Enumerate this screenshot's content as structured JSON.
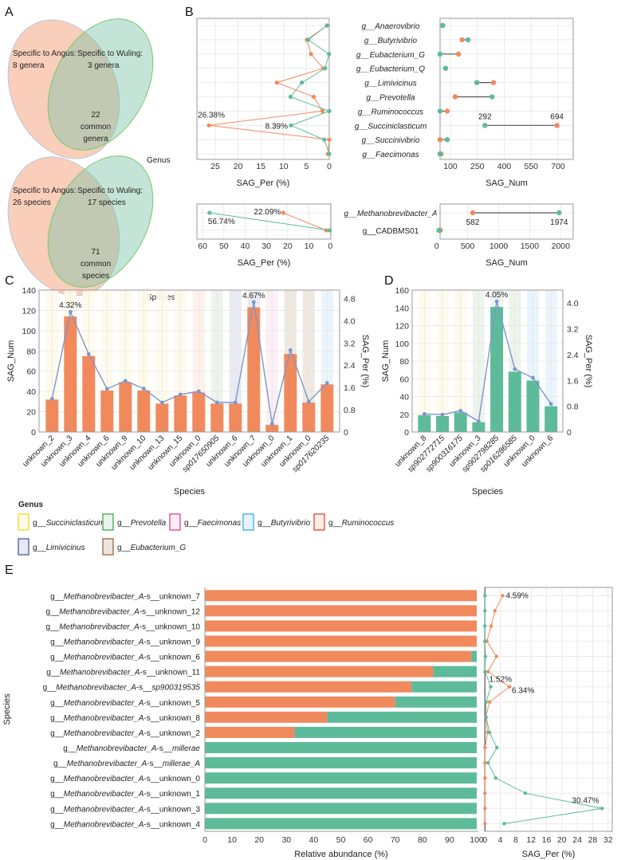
{
  "panel_labels": [
    "A",
    "B",
    "C",
    "D",
    "E"
  ],
  "colors": {
    "angus": "#F08A5D",
    "wuling": "#5DBB9A",
    "line": "#7F95CC",
    "connector": "#555555"
  },
  "venn": [
    {
      "left_title": "Specific to Angus:",
      "left_value": "8 genera",
      "right_title": "Specific to Wuling:",
      "right_value": "3 genera",
      "common": [
        "22",
        "common",
        "genera"
      ],
      "caption": "Genus"
    },
    {
      "left_title": "Specific to Angus:",
      "left_value": "26 species",
      "right_title": "Specific to Wuling:",
      "right_value": "17 species",
      "common": [
        "71",
        "common",
        "species"
      ],
      "caption": "Species"
    }
  ],
  "legend": {
    "title": "Genus",
    "prefix": "g__",
    "items": [
      {
        "name": "Succiniclasticum",
        "fill": "#FFFBEA",
        "stroke": "#F5D90A"
      },
      {
        "name": "Prevotella",
        "fill": "#EAF3EA",
        "stroke": "#2EA043"
      },
      {
        "name": "Faecimonas",
        "fill": "#FDEEF4",
        "stroke": "#E62F85"
      },
      {
        "name": "Butyrivibrio",
        "fill": "#E8F4FB",
        "stroke": "#27A7E8"
      },
      {
        "name": "Ruminococcus",
        "fill": "#FDEEE6",
        "stroke": "#E53333"
      },
      {
        "name": "Limivicinus",
        "fill": "#E8E8F3",
        "stroke": "#3A4EA0"
      },
      {
        "name": "Eubacterium_G",
        "fill": "#EDE5DD",
        "stroke": "#8B5A33"
      }
    ]
  },
  "chart_data": [
    {
      "type": "dumbbell",
      "panel": "B-top",
      "genera": [
        "g__Anaerovibrio",
        "g__Butyrivibrio",
        "g__Eubacterium_G",
        "g__Eubacterium_Q",
        "g__Limivicinus",
        "g__Prevotella",
        "g__Ruminococcus",
        "g__Succiniclasticum",
        "g__Succinivibrio",
        "g__Faecimonas"
      ],
      "italic": true,
      "per": {
        "angus": [
          0.5,
          4.9,
          4.0,
          1.3,
          11.5,
          3.4,
          1.5,
          26.38,
          0,
          0.3
        ],
        "wuling": [
          0.5,
          4.6,
          0.05,
          0.9,
          6.0,
          8.5,
          0,
          8.39,
          1.1,
          0
        ]
      },
      "num": {
        "angus": [
          55,
          165,
          145,
          null,
          340,
          126,
          82,
          694,
          42,
          48
        ],
        "wuling": [
          58,
          198,
          42,
          73,
          247,
          332,
          42,
          292,
          82,
          42
        ]
      },
      "per_xlabel": "SAG_Per (%)",
      "num_xlabel": "SAG_Num",
      "per_ticks": [
        25,
        20,
        15,
        10,
        5,
        0
      ],
      "num_ticks": [
        100,
        250,
        400,
        550,
        700
      ],
      "per_annotations": [
        {
          "series": "angus",
          "index": 7,
          "text": "26.38%"
        },
        {
          "series": "wuling",
          "index": 7,
          "text": "8.39%"
        }
      ],
      "num_annotations": [
        {
          "series": "wuling",
          "index": 7,
          "text": "292"
        },
        {
          "series": "angus",
          "index": 7,
          "text": "694"
        }
      ]
    },
    {
      "type": "dumbbell",
      "panel": "B-bottom",
      "genera": [
        "g__Methanobrevibacter_A",
        "g__CADBMS01"
      ],
      "italic_flags": [
        true,
        false
      ],
      "per": {
        "angus": [
          22.09,
          1.9
        ],
        "wuling": [
          56.74,
          0.3
        ]
      },
      "num": {
        "angus": [
          582,
          60
        ],
        "wuling": [
          1974,
          39
        ]
      },
      "per_xlabel": "SAG_Per (%)",
      "num_xlabel": "SAG_Num",
      "per_ticks": [
        60,
        50,
        40,
        30,
        20,
        10,
        0
      ],
      "num_ticks": [
        0,
        500,
        1000,
        1500,
        2000
      ],
      "per_annotations": [
        {
          "series": "angus",
          "index": 0,
          "text": "22.09%"
        },
        {
          "series": "wuling",
          "index": 0,
          "text": "56.74%"
        }
      ],
      "num_annotations": [
        {
          "series": "angus",
          "index": 0,
          "text": "582"
        },
        {
          "series": "wuling",
          "index": 0,
          "text": "1974"
        }
      ]
    },
    {
      "type": "bar",
      "panel": "C",
      "categories": [
        "unknown_2",
        "unknown_3",
        "unknown_4",
        "unknown_6",
        "unknown_9",
        "unknown_10",
        "unknown_13",
        "unknown_15",
        "unknown_0",
        "sp017650905",
        "unknown_6",
        "unknown_7",
        "unknown_0",
        "unknown_1",
        "unknown_0",
        "sp017620235"
      ],
      "italic_flags": [
        false,
        false,
        false,
        false,
        false,
        false,
        false,
        false,
        false,
        true,
        false,
        false,
        false,
        false,
        false,
        true
      ],
      "genus_index": [
        0,
        0,
        0,
        0,
        0,
        0,
        0,
        0,
        4,
        1,
        5,
        5,
        2,
        6,
        6,
        3
      ],
      "values": [
        32,
        114,
        75,
        41,
        49,
        41,
        28,
        36,
        39,
        28,
        28,
        123,
        7,
        77,
        29,
        47
      ],
      "per": [
        1.19,
        4.32,
        2.8,
        1.55,
        1.84,
        1.56,
        1.06,
        1.35,
        1.46,
        1.06,
        1.06,
        4.67,
        0.29,
        2.94,
        1.09,
        1.76
      ],
      "annotations": [
        {
          "index": 1,
          "text": "4.32%"
        },
        {
          "index": 11,
          "text": "4.67%"
        }
      ],
      "xlabel": "Species",
      "ylabel": "SAG_Num",
      "y2label": "SAG_Per (%)",
      "ylim": [
        0,
        140
      ],
      "yticks": [
        0,
        20,
        40,
        60,
        80,
        100,
        120,
        140
      ],
      "y2lim": [
        0,
        5.1
      ],
      "y2ticks": [
        "0",
        "0.8",
        "1.6",
        "2.4",
        "3.2",
        "4.0",
        "4.8"
      ]
    },
    {
      "type": "bar",
      "panel": "D",
      "categories": [
        "unknown_8",
        "sp902772715",
        "sp900316175",
        "unknown_3",
        "sp902798285",
        "sp016286585",
        "unknown_0",
        "unknown_6"
      ],
      "italic_flags": [
        false,
        true,
        true,
        false,
        true,
        true,
        false,
        false
      ],
      "genus_index": [
        0,
        0,
        0,
        1,
        1,
        1,
        3,
        3
      ],
      "values": [
        19,
        18,
        22,
        11,
        141,
        68,
        58,
        29
      ],
      "per": [
        0.56,
        0.54,
        0.66,
        0.33,
        4.05,
        1.95,
        1.68,
        0.87
      ],
      "annotations": [
        {
          "index": 4,
          "text": "4.05%"
        }
      ],
      "xlabel": "Species",
      "ylabel": "SAG_Num",
      "y2label": "SAG_Per (%)",
      "ylim": [
        0,
        160
      ],
      "yticks": [
        0,
        20,
        40,
        60,
        80,
        100,
        120,
        140,
        160
      ],
      "y2lim": [
        0,
        4.4
      ],
      "y2ticks": [
        "0",
        "0.8",
        "1.6",
        "2.4",
        "3.2",
        "4.0"
      ]
    },
    {
      "type": "stacked-bar",
      "panel": "E",
      "prefix": "g__",
      "genus": "Methanobrevibacter_A",
      "separator": "-s__",
      "species": [
        "unknown_7",
        "unknown_12",
        "unknown_10",
        "unknown_9",
        "unknown_6",
        "unknown_11",
        "sp900319535",
        "unknown_5",
        "unknown_8",
        "unknown_2",
        "millerae",
        "millerae_A",
        "unknown_0",
        "unknown_1",
        "unknown_3",
        "unknown_4"
      ],
      "species_italic": [
        false,
        false,
        false,
        false,
        false,
        false,
        true,
        false,
        false,
        false,
        true,
        true,
        false,
        false,
        false,
        false
      ],
      "angus_abundance": [
        100,
        100,
        100,
        100,
        98,
        84,
        76,
        70,
        45,
        33,
        0,
        0,
        0,
        0,
        0,
        0
      ],
      "per": {
        "angus": [
          4.59,
          2.6,
          1.6,
          0.5,
          3.0,
          0.8,
          6.34,
          1.2,
          0.2,
          0.7,
          0,
          0,
          0,
          0,
          0,
          0
        ],
        "wuling": [
          0,
          0,
          0,
          0,
          0.1,
          0,
          1.52,
          0.3,
          0.3,
          1.2,
          3.1,
          0.8,
          2.8,
          10.5,
          30.47,
          5.0
        ]
      },
      "annotations": [
        {
          "series": "angus",
          "index": 0,
          "text": "4.59%"
        },
        {
          "series": "wuling",
          "index": 6,
          "text": "1.52%"
        },
        {
          "series": "angus",
          "index": 6,
          "text": "6.34%"
        },
        {
          "series": "wuling",
          "index": 14,
          "text": "30.47%"
        }
      ],
      "xlabel": "Relative abundance (%)",
      "ylabel": "Species",
      "per_xlabel": "SAG_Per (%)",
      "xticks": [
        0,
        10,
        20,
        30,
        40,
        50,
        60,
        70,
        80,
        90,
        100
      ],
      "per_ticks": [
        0,
        4,
        8,
        12,
        16,
        20,
        24,
        28,
        32
      ]
    }
  ]
}
